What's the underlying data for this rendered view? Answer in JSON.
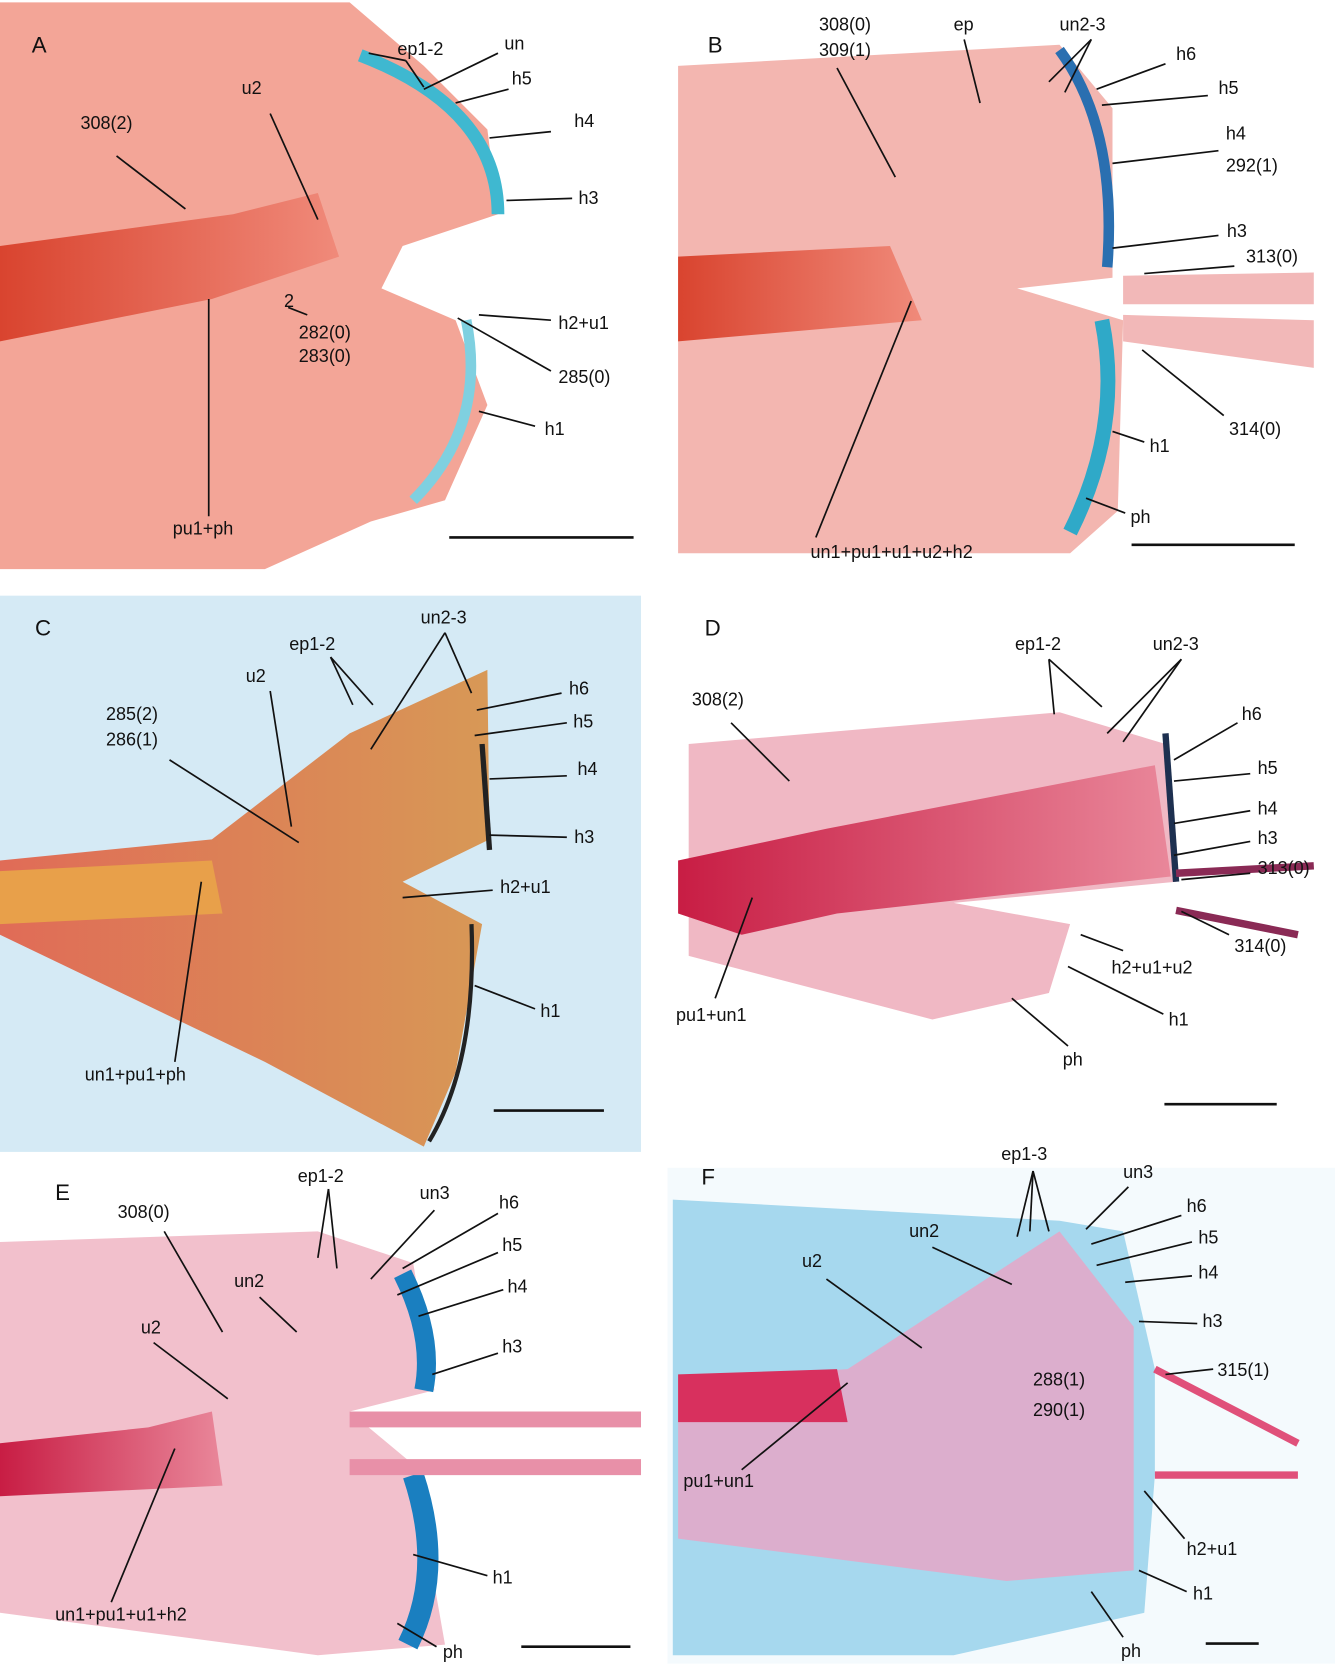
{
  "panels": [
    {
      "letter": "A",
      "labels": [
        "ep1-2",
        "un",
        "h5",
        "h4",
        "h3",
        "u2",
        "308(2)",
        "2",
        "282(0)",
        "283(0)",
        "h2+u1",
        "285(0)",
        "h1",
        "pu1+ph"
      ]
    },
    {
      "letter": "B",
      "labels": [
        "308(0)",
        "309(1)",
        "ep",
        "un2-3",
        "h6",
        "h5",
        "h4",
        "292(1)",
        "h3",
        "313(0)",
        "314(0)",
        "h1",
        "ph",
        "un1+pu1+u1+u2+h2"
      ]
    },
    {
      "letter": "C",
      "labels": [
        "ep1-2",
        "un2-3",
        "h6",
        "h5",
        "h4",
        "h3",
        "285(2)",
        "286(1)",
        "u2",
        "h2+u1",
        "h1",
        "un1+pu1+ph"
      ]
    },
    {
      "letter": "D",
      "labels": [
        "ep1-2",
        "un2-3",
        "308(2)",
        "h6",
        "h5",
        "h4",
        "h3",
        "313(0)",
        "314(0)",
        "h2+u1+u2",
        "h1",
        "pu1+un1",
        "ph"
      ]
    },
    {
      "letter": "E",
      "labels": [
        "ep1-2",
        "un3",
        "h6",
        "308(0)",
        "un2",
        "h5",
        "h4",
        "u2",
        "h3",
        "h1",
        "un1+pu1+u1+h2",
        "ph"
      ]
    },
    {
      "letter": "F",
      "labels": [
        "ep1-3",
        "un3",
        "h6",
        "un2",
        "h5",
        "u2",
        "h4",
        "h3",
        "315(1)",
        "288(1)",
        "290(1)",
        "pu1+un1",
        "h2+u1",
        "h1",
        "ph"
      ]
    }
  ]
}
